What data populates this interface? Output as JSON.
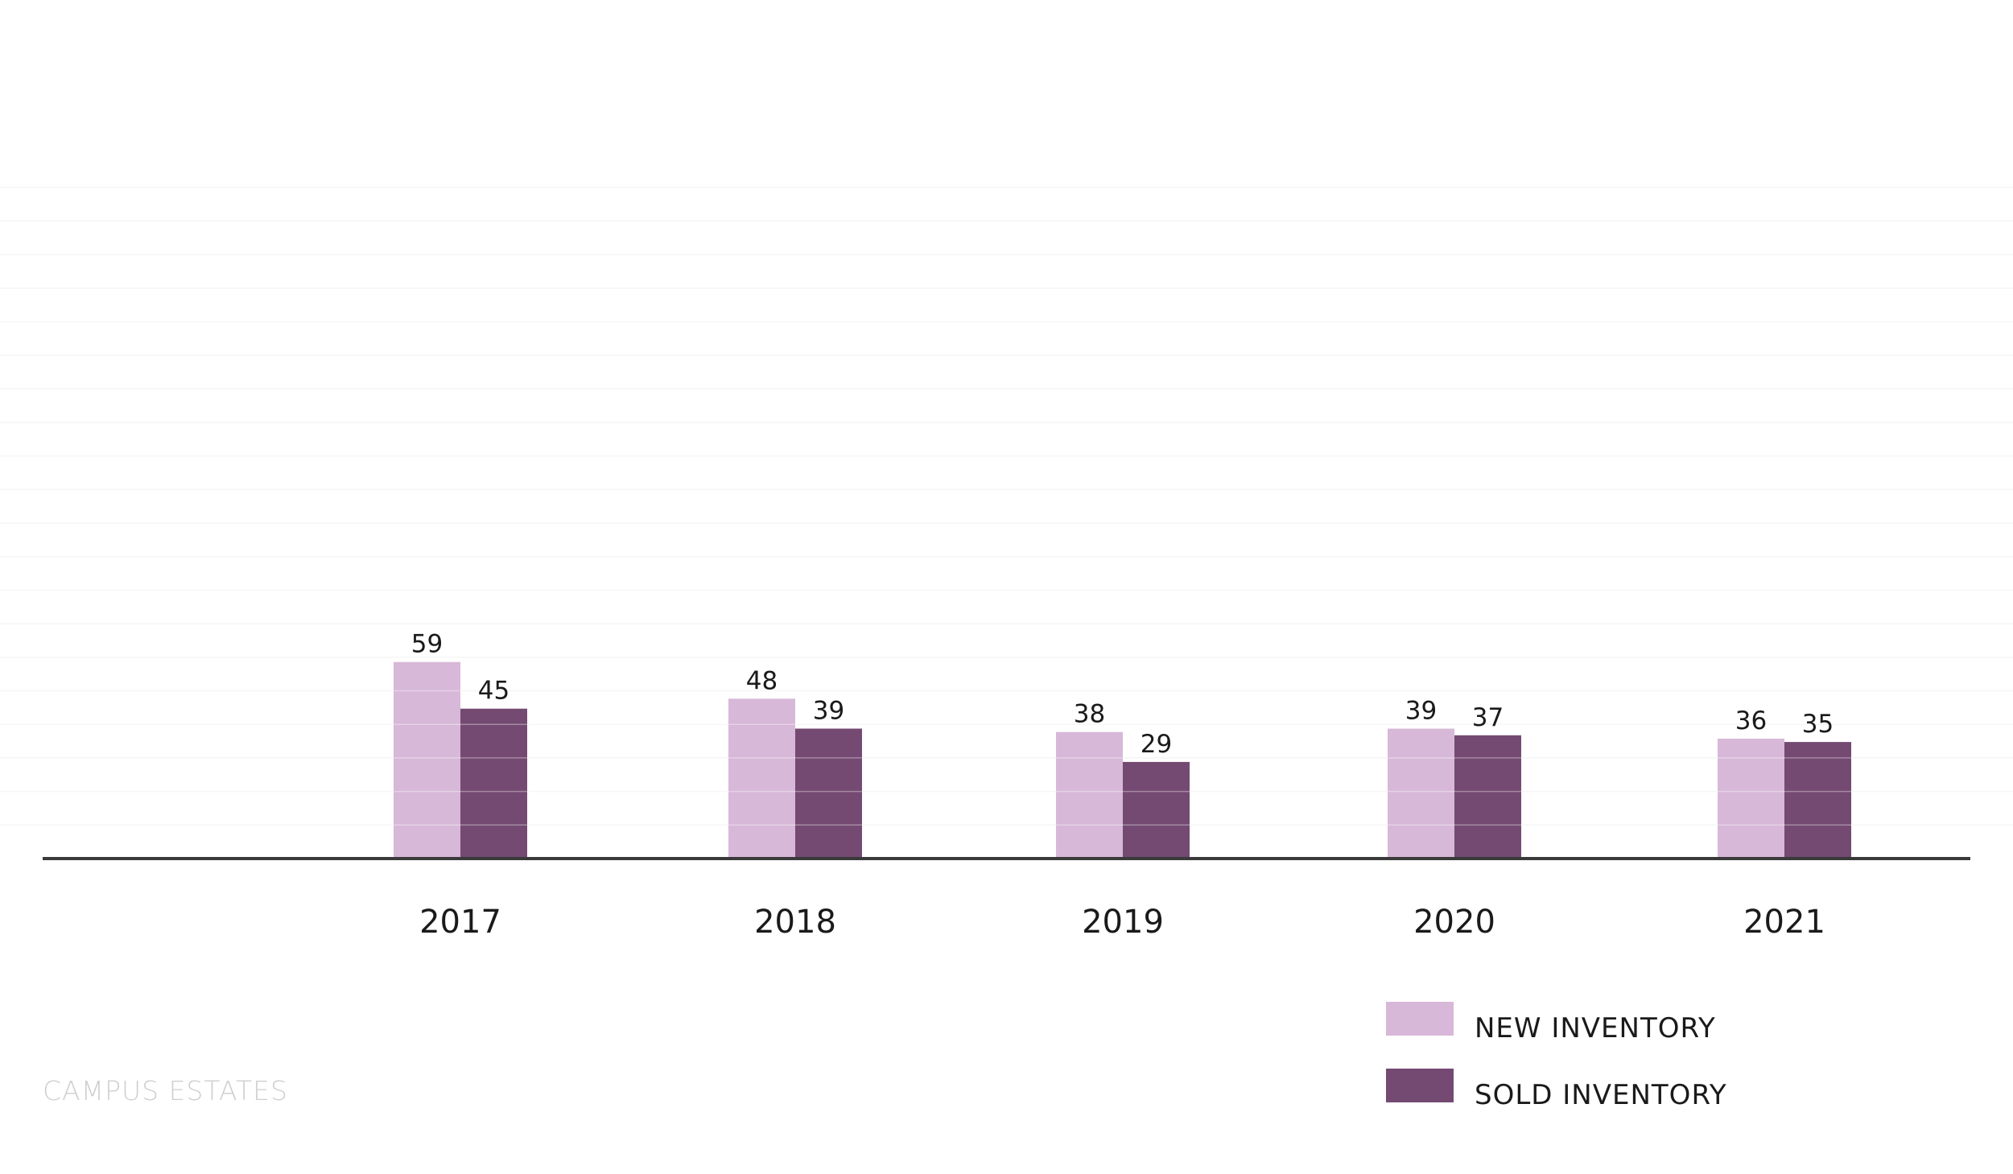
{
  "chart_data": {
    "type": "bar",
    "categories": [
      "2017",
      "2018",
      "2019",
      "2020",
      "2021"
    ],
    "series": [
      {
        "name": "NEW INVENTORY",
        "values": [
          59,
          48,
          38,
          39,
          36
        ],
        "color": "#d7b8d8"
      },
      {
        "name": "SOLD INVENTORY",
        "values": [
          45,
          39,
          29,
          37,
          35
        ],
        "color": "#744a72"
      }
    ],
    "ylim": [
      0,
      200
    ],
    "grid": true,
    "legend_position": "bottom-right"
  },
  "footer": {
    "brand": "CAMPUS ESTATES"
  },
  "colors": {
    "axis": "#3a3a3a",
    "grid": "#f1f1f1",
    "label": "#1a1a1a"
  }
}
